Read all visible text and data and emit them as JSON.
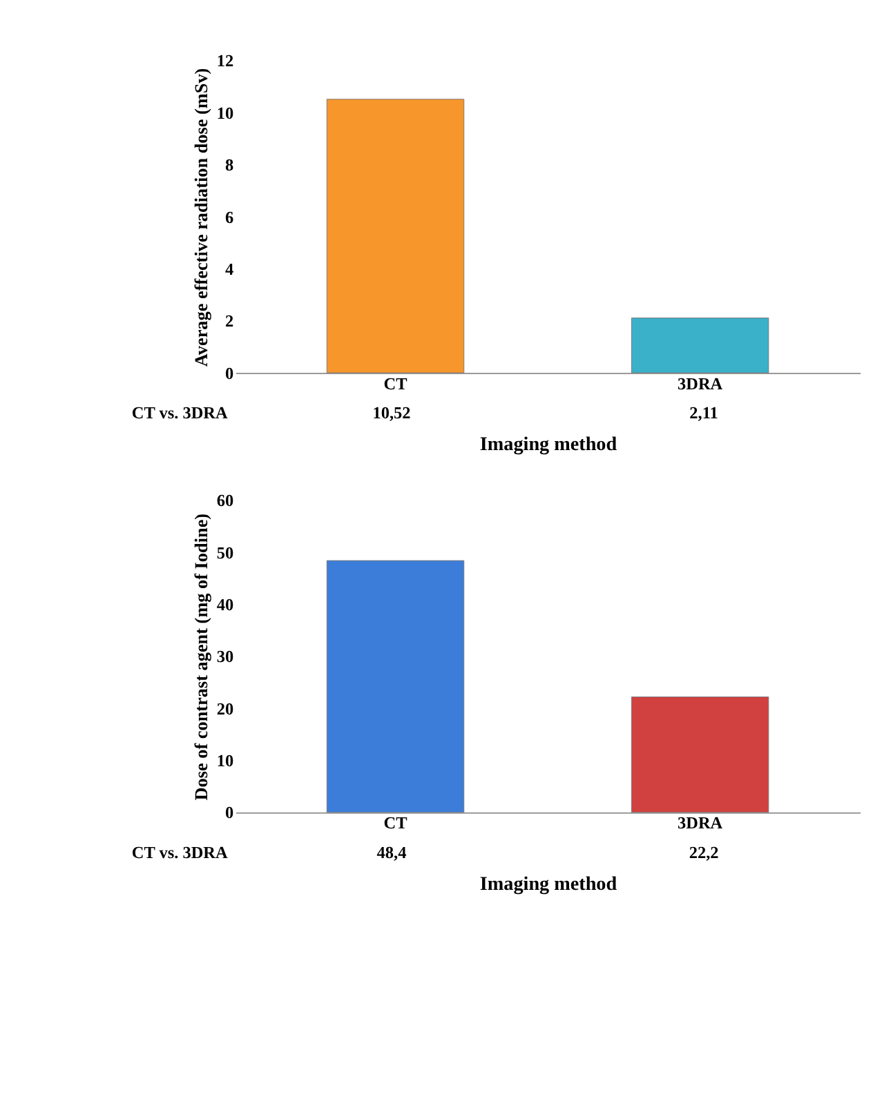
{
  "chart_data": [
    {
      "type": "bar",
      "categories": [
        "CT",
        "3DRA"
      ],
      "ylabel": "Average effective radiation dose (mSv)",
      "xlabel": "Imaging method",
      "ylim": [
        0,
        12
      ],
      "yticks": [
        0,
        2,
        4,
        6,
        8,
        10,
        12
      ],
      "series": [
        {
          "name": "CT vs. 3DRA",
          "colors": [
            "#f7962b",
            "#3bb0c9"
          ],
          "values": [
            10.52,
            2.11
          ],
          "value_labels": [
            "10,52",
            "2,11"
          ]
        }
      ]
    },
    {
      "type": "bar",
      "categories": [
        "CT",
        "3DRA"
      ],
      "ylabel": "Dose of contrast agent (mg of Iodine)",
      "xlabel": "Imaging method",
      "ylim": [
        0,
        60
      ],
      "yticks": [
        0,
        10,
        20,
        30,
        40,
        50,
        60
      ],
      "series": [
        {
          "name": "CT vs. 3DRA",
          "colors": [
            "#3b7dd8",
            "#d0413f"
          ],
          "values": [
            48.4,
            22.2
          ],
          "value_labels": [
            "48,4",
            "22,2"
          ]
        }
      ]
    }
  ]
}
